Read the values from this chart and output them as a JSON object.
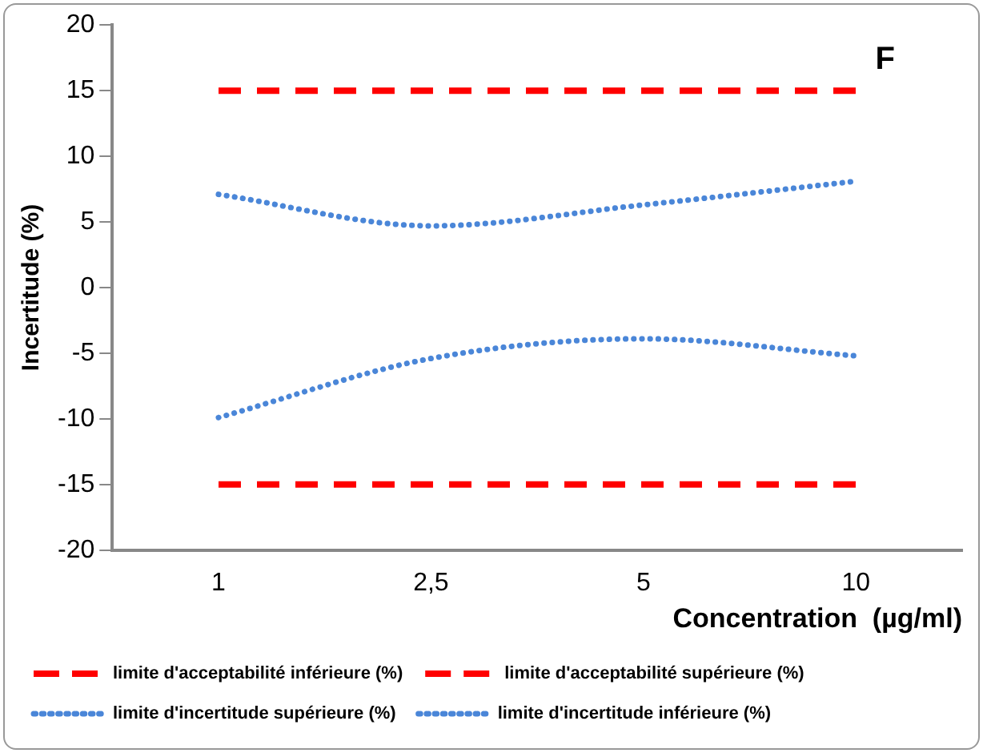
{
  "chart_data": {
    "type": "line",
    "categories": [
      "1",
      "2,5",
      "5",
      "10"
    ],
    "xlabel": "Concentration  (µg/ml)",
    "ylabel": "Incertitude (%)",
    "ylim": [
      -20,
      20
    ],
    "yticks": [
      -20,
      -15,
      -10,
      -5,
      0,
      5,
      10,
      15,
      20
    ],
    "grid": false,
    "legend": "bottom",
    "marker": "none",
    "annotations": [
      "F"
    ],
    "series": [
      {
        "name": "limite d'acceptabilité inférieure (%)",
        "color": "#ff0000",
        "line_style": "dashed",
        "values": [
          -15,
          -15,
          -15,
          -15
        ]
      },
      {
        "name": "limite d'acceptabilité supérieure (%)",
        "color": "#ff0000",
        "line_style": "dashed",
        "values": [
          15,
          15,
          15,
          15
        ]
      },
      {
        "name": "limite d'incertitude supérieure (%)",
        "color": "#4a86d8",
        "line_style": "dotted",
        "values": [
          7.1,
          4.7,
          6.3,
          8.1
        ]
      },
      {
        "name": "limite d'incertitude inférieure (%)",
        "color": "#4a86d8",
        "line_style": "dotted",
        "values": [
          -9.9,
          -5.4,
          -3.9,
          -5.2
        ]
      }
    ]
  }
}
